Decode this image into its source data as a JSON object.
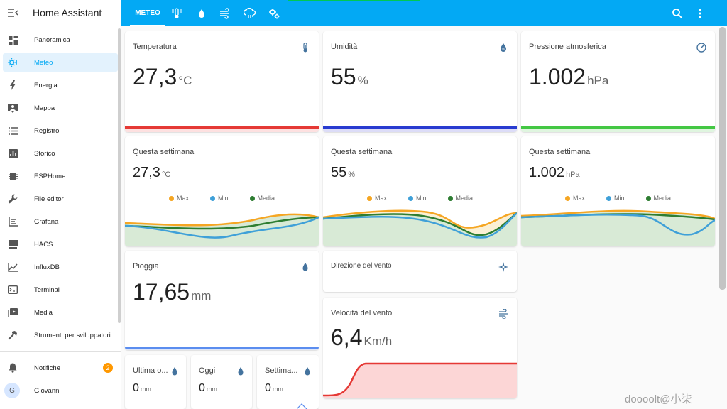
{
  "app": {
    "title": "Home Assistant"
  },
  "sidebar": {
    "items": [
      {
        "label": "Panoramica",
        "icon": "dashboard-icon"
      },
      {
        "label": "Meteo",
        "icon": "weather-icon",
        "active": true
      },
      {
        "label": "Energia",
        "icon": "lightning-icon"
      },
      {
        "label": "Mappa",
        "icon": "map-icon"
      },
      {
        "label": "Registro",
        "icon": "list-icon"
      },
      {
        "label": "Storico",
        "icon": "chart-icon"
      },
      {
        "label": "ESPHome",
        "icon": "esphome-icon"
      },
      {
        "label": "File editor",
        "icon": "wrench-icon"
      },
      {
        "label": "Grafana",
        "icon": "grafana-icon"
      },
      {
        "label": "HACS",
        "icon": "hacs-icon"
      },
      {
        "label": "InfluxDB",
        "icon": "influxdb-icon"
      },
      {
        "label": "Terminal",
        "icon": "terminal-icon"
      },
      {
        "label": "Media",
        "icon": "media-icon"
      },
      {
        "label": "Strumenti per sviluppatori",
        "icon": "hammer-icon"
      }
    ],
    "notifications": {
      "label": "Notifiche",
      "count": "2"
    },
    "user": {
      "label": "Giovanni",
      "initial": "G"
    }
  },
  "topbar": {
    "active_tab": "METEO"
  },
  "cards": {
    "temperatura": {
      "title": "Temperatura",
      "value": "27,3",
      "unit": "°C",
      "color": "#e53935"
    },
    "umidita": {
      "title": "Umidità",
      "value": "55",
      "unit": "%",
      "color": "#283bd0"
    },
    "pressione": {
      "title": "Pressione atmosferica",
      "value": "1.002",
      "unit": "hPa",
      "color": "#43c743"
    },
    "week_temp": {
      "title": "Questa settimana",
      "value": "27,3",
      "unit": "°C"
    },
    "week_hum": {
      "title": "Questa settimana",
      "value": "55",
      "unit": "%"
    },
    "week_press": {
      "title": "Questa settimana",
      "value": "1.002",
      "unit": "hPa"
    },
    "legend": {
      "max": "Max",
      "min": "Min",
      "media": "Media",
      "max_color": "#f5a623",
      "min_color": "#3fa0d8",
      "media_color": "#2e7d32"
    },
    "pioggia": {
      "title": "Pioggia",
      "value": "17,65",
      "unit": "mm",
      "color": "#5b8def"
    },
    "direzione": {
      "title": "Direzione del vento"
    },
    "velocita": {
      "title": "Velocità del vento",
      "value": "6,4",
      "unit": "Km/h",
      "color": "#e53935"
    },
    "ultima": {
      "title": "Ultima o...",
      "value": "0",
      "unit": "mm"
    },
    "oggi": {
      "title": "Oggi",
      "value": "0",
      "unit": "mm"
    },
    "settimana": {
      "title": "Settima...",
      "value": "0",
      "unit": "mm"
    }
  },
  "watermark": "doooolt@小柒"
}
